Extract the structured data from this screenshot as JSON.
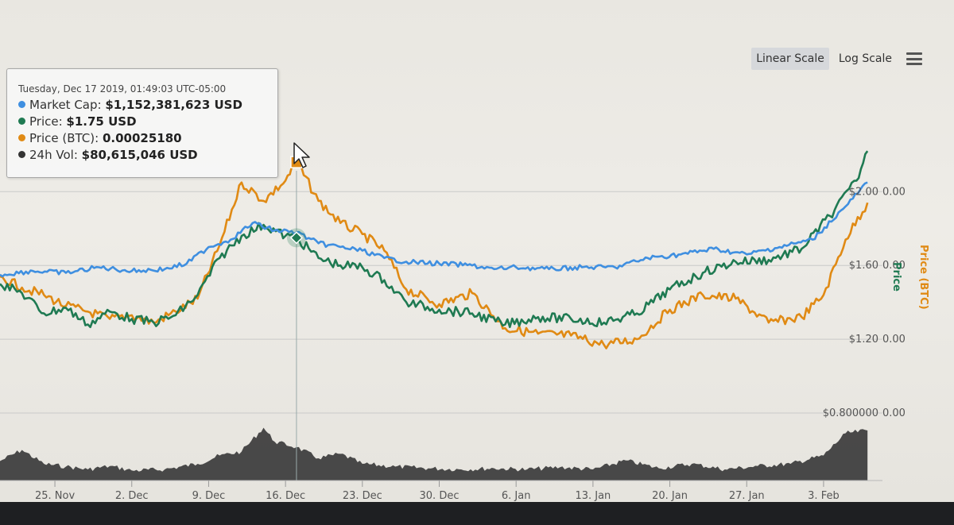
{
  "toolbar": {
    "linear_label": "Linear Scale",
    "log_label": "Log Scale",
    "active": "linear"
  },
  "tooltip": {
    "date": "Tuesday, Dec 17 2019, 01:49:03 UTC-05:00",
    "rows": [
      {
        "name": "Market Cap",
        "value": "$1,152,381,623 USD",
        "color": "#3f8fe0"
      },
      {
        "name": "Price",
        "value": "$1.75 USD",
        "color": "#1f7a52"
      },
      {
        "name": "Price (BTC)",
        "value": "0.00025180",
        "color": "#e08a14"
      },
      {
        "name": "24h Vol",
        "value": "$80,615,046 USD",
        "color": "#333333"
      }
    ]
  },
  "chart_data": {
    "type": "line",
    "x_tick_labels": [
      "25. Nov",
      "2. Dec",
      "9. Dec",
      "16. Dec",
      "23. Dec",
      "30. Dec",
      "6. Jan",
      "13. Jan",
      "20. Jan",
      "27. Jan",
      "3. Feb"
    ],
    "x_ticks": [
      "2019-11-25",
      "2019-12-02",
      "2019-12-09",
      "2019-12-16",
      "2019-12-23",
      "2019-12-30",
      "2020-01-06",
      "2020-01-13",
      "2020-01-20",
      "2020-01-27",
      "2020-02-03"
    ],
    "x_range": [
      "2019-11-20",
      "2020-02-08"
    ],
    "y_axis_price": {
      "title": "Price",
      "ticks": [
        0.8,
        1.2,
        1.6,
        2.0
      ],
      "tick_labels": [
        "$0.800000",
        "$1.20",
        "$1.60",
        "$2.00"
      ],
      "range": [
        0.8,
        2.35
      ],
      "color": "#1f7a52"
    },
    "y_axis_btc": {
      "title": "Price (BTC)",
      "tick_labels": [
        "0.00",
        "0.00",
        "0.00",
        "0.00"
      ],
      "color": "#e08a14"
    },
    "grid": true,
    "crosshair_date": "2019-12-17",
    "series": [
      {
        "name": "Market Cap",
        "color": "#3f8fe0",
        "points": [
          [
            "2019-11-20",
            1.55
          ],
          [
            "2019-11-23",
            1.57
          ],
          [
            "2019-11-26",
            1.56
          ],
          [
            "2019-11-29",
            1.59
          ],
          [
            "2019-12-02",
            1.57
          ],
          [
            "2019-12-05",
            1.58
          ],
          [
            "2019-12-07",
            1.61
          ],
          [
            "2019-12-09",
            1.7
          ],
          [
            "2019-12-11",
            1.74
          ],
          [
            "2019-12-13",
            1.83
          ],
          [
            "2019-12-15",
            1.79
          ],
          [
            "2019-12-17",
            1.78
          ],
          [
            "2019-12-19",
            1.72
          ],
          [
            "2019-12-21",
            1.7
          ],
          [
            "2019-12-23",
            1.68
          ],
          [
            "2019-12-25",
            1.64
          ],
          [
            "2019-12-27",
            1.62
          ],
          [
            "2019-12-30",
            1.61
          ],
          [
            "2020-01-02",
            1.6
          ],
          [
            "2020-01-04",
            1.58
          ],
          [
            "2020-01-06",
            1.59
          ],
          [
            "2020-01-09",
            1.58
          ],
          [
            "2020-01-12",
            1.59
          ],
          [
            "2020-01-15",
            1.59
          ],
          [
            "2020-01-18",
            1.64
          ],
          [
            "2020-01-21",
            1.66
          ],
          [
            "2020-01-24",
            1.69
          ],
          [
            "2020-01-27",
            1.66
          ],
          [
            "2020-01-30",
            1.7
          ],
          [
            "2020-02-02",
            1.74
          ],
          [
            "2020-02-05",
            1.92
          ],
          [
            "2020-02-07",
            2.05
          ]
        ]
      },
      {
        "name": "Price",
        "color": "#1f7a52",
        "points": [
          [
            "2019-11-20",
            1.5
          ],
          [
            "2019-11-22",
            1.45
          ],
          [
            "2019-11-24",
            1.34
          ],
          [
            "2019-11-26",
            1.37
          ],
          [
            "2019-11-28",
            1.28
          ],
          [
            "2019-11-30",
            1.35
          ],
          [
            "2019-12-02",
            1.31
          ],
          [
            "2019-12-04",
            1.29
          ],
          [
            "2019-12-06",
            1.33
          ],
          [
            "2019-12-08",
            1.44
          ],
          [
            "2019-12-10",
            1.64
          ],
          [
            "2019-12-12",
            1.76
          ],
          [
            "2019-12-14",
            1.82
          ],
          [
            "2019-12-16",
            1.76
          ],
          [
            "2019-12-17",
            1.75
          ],
          [
            "2019-12-19",
            1.64
          ],
          [
            "2019-12-21",
            1.6
          ],
          [
            "2019-12-23",
            1.59
          ],
          [
            "2019-12-25",
            1.52
          ],
          [
            "2019-12-27",
            1.4
          ],
          [
            "2019-12-30",
            1.36
          ],
          [
            "2020-01-02",
            1.34
          ],
          [
            "2020-01-05",
            1.28
          ],
          [
            "2020-01-08",
            1.32
          ],
          [
            "2020-01-11",
            1.31
          ],
          [
            "2020-01-14",
            1.29
          ],
          [
            "2020-01-17",
            1.34
          ],
          [
            "2020-01-20",
            1.47
          ],
          [
            "2020-01-23",
            1.56
          ],
          [
            "2020-01-26",
            1.62
          ],
          [
            "2020-01-29",
            1.63
          ],
          [
            "2020-02-01",
            1.69
          ],
          [
            "2020-02-04",
            1.9
          ],
          [
            "2020-02-06",
            2.06
          ],
          [
            "2020-02-07",
            2.22
          ]
        ]
      },
      {
        "name": "Price (BTC)",
        "color": "#e08a14",
        "points": [
          [
            "2019-11-20",
            1.54
          ],
          [
            "2019-11-22",
            1.48
          ],
          [
            "2019-11-24",
            1.44
          ],
          [
            "2019-11-26",
            1.38
          ],
          [
            "2019-11-28",
            1.35
          ],
          [
            "2019-11-30",
            1.31
          ],
          [
            "2019-12-02",
            1.33
          ],
          [
            "2019-12-04",
            1.29
          ],
          [
            "2019-12-06",
            1.35
          ],
          [
            "2019-12-08",
            1.42
          ],
          [
            "2019-12-10",
            1.71
          ],
          [
            "2019-12-12",
            2.05
          ],
          [
            "2019-12-14",
            1.95
          ],
          [
            "2019-12-16",
            2.06
          ],
          [
            "2019-12-17",
            2.16
          ],
          [
            "2019-12-19",
            1.95
          ],
          [
            "2019-12-21",
            1.83
          ],
          [
            "2019-12-23",
            1.77
          ],
          [
            "2019-12-25",
            1.68
          ],
          [
            "2019-12-27",
            1.47
          ],
          [
            "2019-12-30",
            1.39
          ],
          [
            "2020-01-02",
            1.45
          ],
          [
            "2020-01-05",
            1.26
          ],
          [
            "2020-01-08",
            1.23
          ],
          [
            "2020-01-11",
            1.22
          ],
          [
            "2020-01-14",
            1.17
          ],
          [
            "2020-01-17",
            1.2
          ],
          [
            "2020-01-20",
            1.36
          ],
          [
            "2020-01-23",
            1.44
          ],
          [
            "2020-01-26",
            1.42
          ],
          [
            "2020-01-29",
            1.29
          ],
          [
            "2020-02-01",
            1.32
          ],
          [
            "2020-02-03",
            1.44
          ],
          [
            "2020-02-05",
            1.74
          ],
          [
            "2020-02-07",
            1.94
          ]
        ]
      },
      {
        "name": "24h Vol",
        "color": "#333333",
        "points": [
          [
            "2019-11-20",
            0.35
          ],
          [
            "2019-11-22",
            0.55
          ],
          [
            "2019-11-24",
            0.3
          ],
          [
            "2019-11-26",
            0.25
          ],
          [
            "2019-11-28",
            0.2
          ],
          [
            "2019-11-30",
            0.26
          ],
          [
            "2019-12-02",
            0.18
          ],
          [
            "2019-12-05",
            0.2
          ],
          [
            "2019-12-08",
            0.3
          ],
          [
            "2019-12-10",
            0.45
          ],
          [
            "2019-12-12",
            0.52
          ],
          [
            "2019-12-14",
            0.95
          ],
          [
            "2019-12-15",
            0.7
          ],
          [
            "2019-12-17",
            0.6
          ],
          [
            "2019-12-19",
            0.4
          ],
          [
            "2019-12-21",
            0.48
          ],
          [
            "2019-12-23",
            0.3
          ],
          [
            "2019-12-26",
            0.25
          ],
          [
            "2019-12-29",
            0.22
          ],
          [
            "2020-01-01",
            0.2
          ],
          [
            "2020-01-04",
            0.22
          ],
          [
            "2020-01-07",
            0.2
          ],
          [
            "2020-01-10",
            0.24
          ],
          [
            "2020-01-13",
            0.2
          ],
          [
            "2020-01-16",
            0.36
          ],
          [
            "2020-01-19",
            0.22
          ],
          [
            "2020-01-22",
            0.3
          ],
          [
            "2020-01-25",
            0.2
          ],
          [
            "2020-01-28",
            0.26
          ],
          [
            "2020-01-31",
            0.3
          ],
          [
            "2020-02-03",
            0.45
          ],
          [
            "2020-02-05",
            0.85
          ],
          [
            "2020-02-07",
            0.9
          ]
        ]
      }
    ]
  }
}
